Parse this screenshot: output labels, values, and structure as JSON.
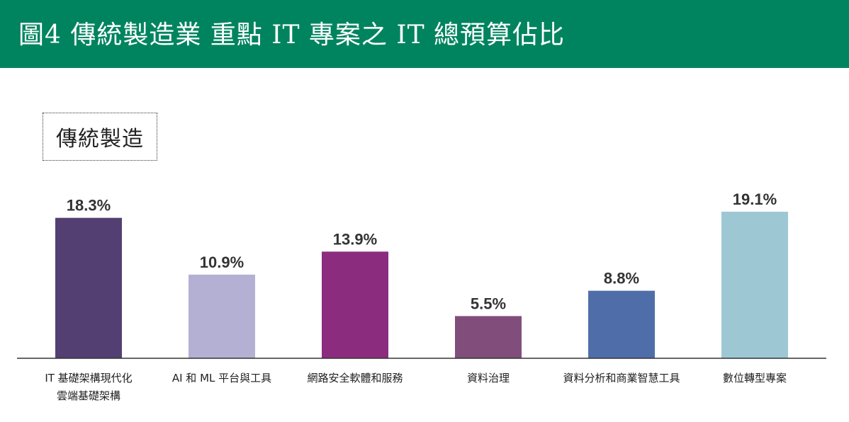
{
  "header": {
    "title": "圖4 傳統製造業 重點 IT 專案之 IT 總預算佔比",
    "background": "#00845f"
  },
  "category_label": "傳統製造",
  "chart_data": {
    "type": "bar",
    "categories": [
      [
        "IT 基礎架構現代化",
        "雲端基礎架構"
      ],
      [
        "AI 和 ML 平台與工具"
      ],
      [
        "網路安全軟體和服務"
      ],
      [
        "資料治理"
      ],
      [
        "資料分析和商業智慧工具"
      ],
      [
        "數位轉型專案"
      ]
    ],
    "values": [
      18.3,
      10.9,
      13.9,
      5.5,
      8.8,
      19.1
    ],
    "value_labels": [
      "18.3%",
      "10.9%",
      "13.9%",
      "5.5%",
      "8.8%",
      "19.1%"
    ],
    "colors": [
      "#533f72",
      "#b3b0d3",
      "#8b2c7e",
      "#814e7c",
      "#4f6ea9",
      "#9ec7d4"
    ],
    "ylim": [
      0,
      19.1
    ],
    "grid": false,
    "legend": "none"
  }
}
